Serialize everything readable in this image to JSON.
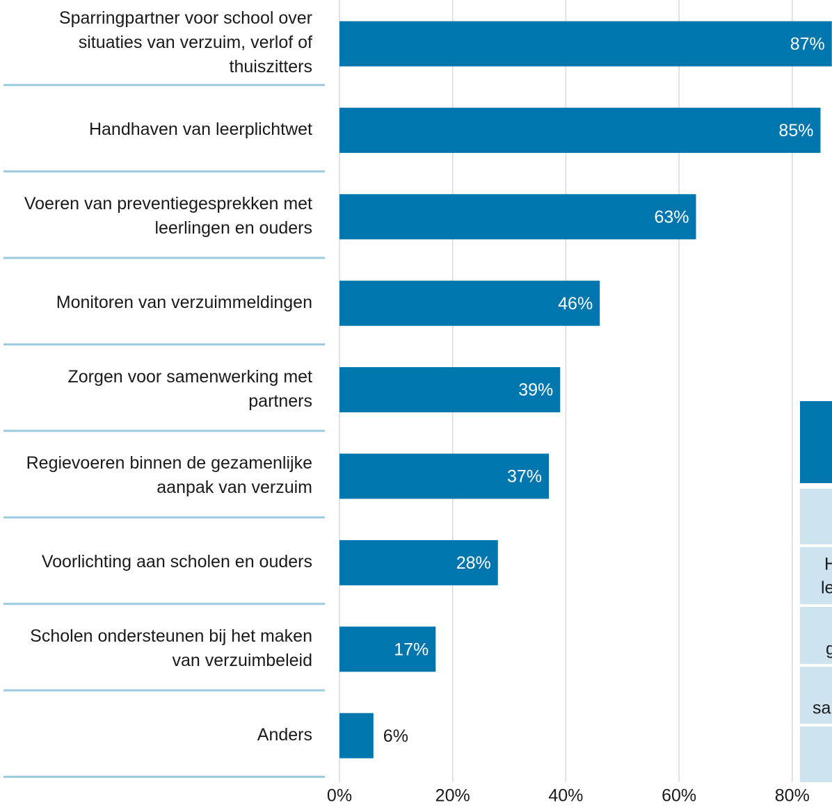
{
  "chart_data": {
    "type": "barh",
    "categories": [
      "Sparringpartner voor school over situaties van verzuim, verlof of thuiszitters",
      "Handhaven van leerplichtwet",
      "Voeren van preventiegesprekken met leerlingen en ouders",
      "Monitoren van verzuimmeldingen",
      "Zorgen voor samenwerking met partners",
      "Regievoeren binnen de gezamenlijke aanpak van verzuim",
      "Voorlichting aan scholen en ouders",
      "Scholen ondersteunen bij het maken van verzuimbeleid",
      "Anders"
    ],
    "values": [
      87,
      85,
      63,
      46,
      39,
      37,
      28,
      17,
      6
    ],
    "value_labels": [
      "87%",
      "85%",
      "63%",
      "46%",
      "39%",
      "37%",
      "28%",
      "17%",
      "6%"
    ],
    "color": "#0076ae",
    "xlim": [
      0,
      100
    ],
    "xticks": [
      {
        "value": 0,
        "label": "0%"
      },
      {
        "value": 20,
        "label": "20%"
      },
      {
        "value": 40,
        "label": "40%"
      },
      {
        "value": 60,
        "label": "60%"
      },
      {
        "value": 80,
        "label": "80%"
      }
    ],
    "grid": true
  },
  "side_panel": {
    "fragments": [
      "H",
      "le",
      "g",
      "sa"
    ]
  }
}
